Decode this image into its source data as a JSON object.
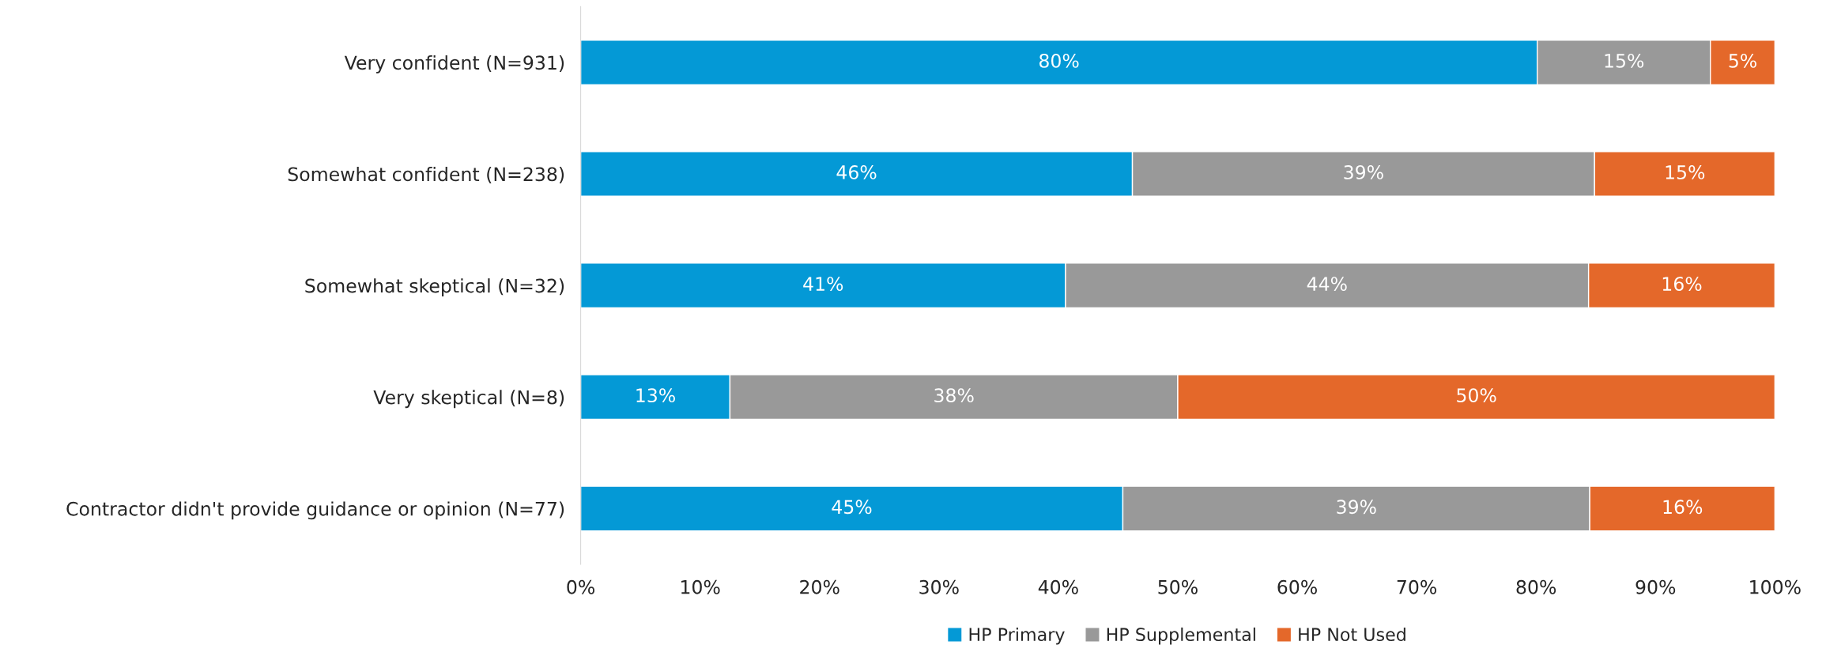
{
  "chart_data": {
    "type": "bar",
    "orientation": "horizontal",
    "stacked": true,
    "categories": [
      "Very confident (N=931)",
      "Somewhat confident (N=238)",
      "Somewhat skeptical (N=32)",
      "Very skeptical (N=8)",
      "Contractor didn't provide guidance or opinion (N=77)"
    ],
    "series": [
      {
        "name": "HP Primary",
        "color": "#0499d6",
        "values": [
          80.1,
          46.2,
          40.6,
          12.5,
          45.4
        ],
        "value_labels": [
          "80%",
          "46%",
          "41%",
          "13%",
          "45%"
        ]
      },
      {
        "name": "HP Supplemental",
        "color": "#999999",
        "values": [
          14.5,
          38.7,
          43.8,
          37.5,
          39.1
        ],
        "value_labels": [
          "15%",
          "39%",
          "44%",
          "38%",
          "39%"
        ]
      },
      {
        "name": "HP Not Used",
        "color": "#e4682a",
        "values": [
          5.4,
          15.1,
          15.6,
          50.0,
          15.5
        ],
        "value_labels": [
          "5%",
          "15%",
          "16%",
          "50%",
          "16%"
        ]
      }
    ],
    "xlim": [
      0,
      100
    ],
    "xticks": [
      {
        "value": 0,
        "label": "0%"
      },
      {
        "value": 10,
        "label": "10%"
      },
      {
        "value": 20,
        "label": "20%"
      },
      {
        "value": 30,
        "label": "30%"
      },
      {
        "value": 40,
        "label": "40%"
      },
      {
        "value": 50,
        "label": "50%"
      },
      {
        "value": 60,
        "label": "60%"
      },
      {
        "value": 70,
        "label": "70%"
      },
      {
        "value": 80,
        "label": "80%"
      },
      {
        "value": 90,
        "label": "90%"
      },
      {
        "value": 100,
        "label": "100%"
      }
    ],
    "grid": false,
    "legend": "bottom"
  }
}
